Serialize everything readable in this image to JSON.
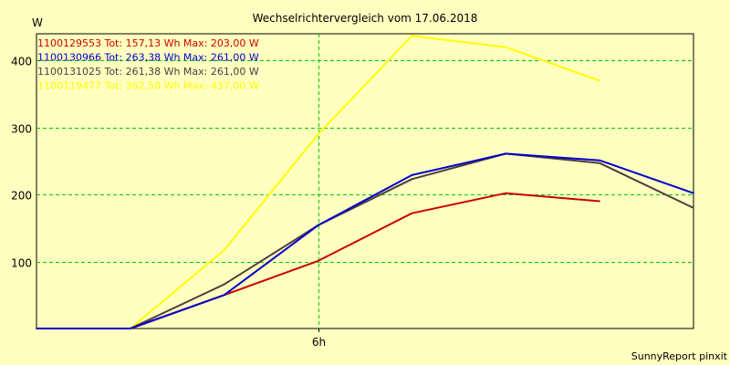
{
  "chart_data": {
    "type": "line",
    "title": "Wechselrichtervergleich vom 17.06.2018",
    "ylabel": "W",
    "xlabel": "",
    "x_ticks": [
      {
        "x": 3,
        "label": "6h"
      }
    ],
    "y_ticks": [
      100,
      200,
      300,
      400
    ],
    "xlim": [
      0,
      7
    ],
    "ylim": [
      0,
      440
    ],
    "grid": true,
    "legend_position": "top-left",
    "footer": "SunnyReport pinxit",
    "series": [
      {
        "name": "1100129553",
        "legend": "1100129553 Tot: 157,13 Wh Max: 203,00 W",
        "color": "#cc0000",
        "x": [
          0,
          1,
          2,
          3,
          4,
          5,
          6
        ],
        "y": [
          0,
          0,
          50,
          101,
          172,
          202,
          190
        ]
      },
      {
        "name": "1100130966",
        "legend": "1100130966 Tot: 263,38 Wh Max: 261,00 W",
        "color": "#0000cc",
        "x": [
          0,
          1,
          2,
          3,
          4,
          5,
          6,
          7
        ],
        "y": [
          0,
          0,
          50,
          154,
          229,
          261,
          251,
          202
        ]
      },
      {
        "name": "1100131025",
        "legend": "1100131025 Tot: 261,38 Wh Max: 261,00 W",
        "color": "#503c3c",
        "x": [
          0,
          1,
          2,
          3,
          4,
          5,
          6,
          7
        ],
        "y": [
          0,
          0,
          66,
          154,
          223,
          261,
          247,
          180
        ]
      },
      {
        "name": "1100119477",
        "legend": "1100119477 Tot: 362,50 Wh Max: 437,00 W",
        "color": "#ffff00",
        "x": [
          0,
          1,
          2,
          3,
          4,
          5,
          6
        ],
        "y": [
          0,
          0,
          117,
          290,
          437,
          420,
          370
        ]
      }
    ]
  }
}
